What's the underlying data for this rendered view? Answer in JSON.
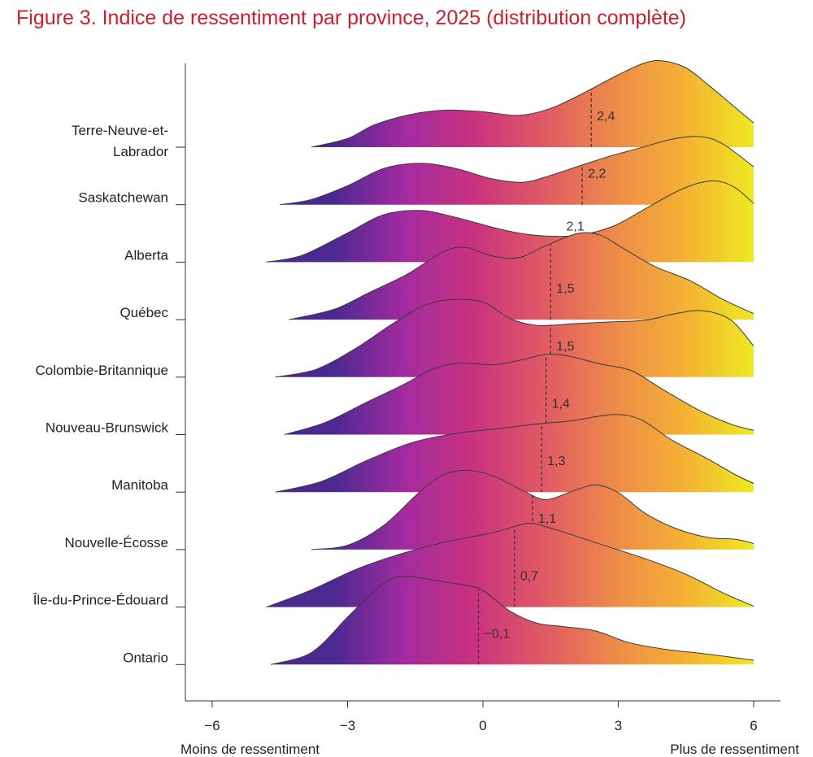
{
  "chart_data": {
    "type": "ridgeline",
    "title": "Figure 3. Indice de ressentiment par province, 2025 (distribution complète)",
    "xlabel_left": "Moins de ressentiment",
    "xlabel_right": "Plus de ressentiment",
    "xlim": [
      -6.5,
      6.2
    ],
    "xticks": [
      {
        "value": -6,
        "label": "−6"
      },
      {
        "value": -3,
        "label": "−3"
      },
      {
        "value": 0,
        "label": "0"
      },
      {
        "value": 3,
        "label": "3"
      },
      {
        "value": 6,
        "label": "6"
      }
    ],
    "colors": {
      "gradient_stops": [
        "#4b2991",
        "#a22ba0",
        "#c9327f",
        "#e05a64",
        "#ed8a4a",
        "#f4b133",
        "#eeea22"
      ],
      "title": "#c8202f",
      "outline": "#3a3a3a",
      "axis": "#333333"
    },
    "series": [
      {
        "name": "Terre-Neuve-et-Labrador",
        "label_lines": [
          "Terre-Neuve-et-",
          "Labrador"
        ],
        "median": 2.4,
        "median_label": "2,4",
        "start": -3.8,
        "end": 6.0,
        "density": [
          [
            -3.8,
            0
          ],
          [
            -3.0,
            0.1
          ],
          [
            -2.4,
            0.26
          ],
          [
            -1.6,
            0.38
          ],
          [
            -0.8,
            0.43
          ],
          [
            0,
            0.41
          ],
          [
            0.8,
            0.37
          ],
          [
            1.5,
            0.45
          ],
          [
            2.2,
            0.62
          ],
          [
            3.0,
            0.84
          ],
          [
            3.6,
            0.98
          ],
          [
            4.0,
            1.0
          ],
          [
            4.5,
            0.92
          ],
          [
            5.0,
            0.72
          ],
          [
            5.5,
            0.5
          ],
          [
            6.0,
            0.28
          ]
        ]
      },
      {
        "name": "Saskatchewan",
        "label_lines": [
          "Saskatchewan"
        ],
        "median": 2.2,
        "median_label": "2,2",
        "start": -4.5,
        "end": 6.0,
        "density": [
          [
            -4.5,
            0
          ],
          [
            -3.8,
            0.06
          ],
          [
            -3.0,
            0.22
          ],
          [
            -2.2,
            0.42
          ],
          [
            -1.4,
            0.48
          ],
          [
            -0.6,
            0.42
          ],
          [
            0.2,
            0.3
          ],
          [
            0.9,
            0.26
          ],
          [
            1.5,
            0.34
          ],
          [
            2.2,
            0.46
          ],
          [
            2.8,
            0.56
          ],
          [
            3.5,
            0.66
          ],
          [
            4.2,
            0.76
          ],
          [
            4.8,
            0.79
          ],
          [
            5.3,
            0.71
          ],
          [
            6.0,
            0.44
          ]
        ]
      },
      {
        "name": "Alberta",
        "label_lines": [
          "Alberta"
        ],
        "median": 2.1,
        "median_label": "2,1",
        "start": -4.8,
        "end": 6.0,
        "density": [
          [
            -4.8,
            0
          ],
          [
            -4.0,
            0.08
          ],
          [
            -3.0,
            0.34
          ],
          [
            -2.2,
            0.55
          ],
          [
            -1.4,
            0.6
          ],
          [
            -0.6,
            0.52
          ],
          [
            0.4,
            0.38
          ],
          [
            1.2,
            0.31
          ],
          [
            2.1,
            0.31
          ],
          [
            2.9,
            0.42
          ],
          [
            3.6,
            0.62
          ],
          [
            4.3,
            0.82
          ],
          [
            4.8,
            0.92
          ],
          [
            5.2,
            0.94
          ],
          [
            5.6,
            0.86
          ],
          [
            6.0,
            0.68
          ]
        ]
      },
      {
        "name": "Québec",
        "label_lines": [
          "Québec"
        ],
        "median": 1.5,
        "median_label": "1,5",
        "start": -4.3,
        "end": 6.0,
        "density": [
          [
            -4.3,
            0
          ],
          [
            -3.3,
            0.12
          ],
          [
            -2.5,
            0.32
          ],
          [
            -1.7,
            0.52
          ],
          [
            -0.9,
            0.78
          ],
          [
            -0.4,
            0.84
          ],
          [
            0.2,
            0.74
          ],
          [
            0.8,
            0.72
          ],
          [
            1.4,
            0.86
          ],
          [
            2.1,
            1.0
          ],
          [
            2.6,
            0.98
          ],
          [
            3.1,
            0.83
          ],
          [
            3.8,
            0.62
          ],
          [
            4.6,
            0.45
          ],
          [
            5.3,
            0.24
          ],
          [
            6.0,
            0.07
          ]
        ]
      },
      {
        "name": "Colombie-Britannique",
        "label_lines": [
          "Colombie-Britannique"
        ],
        "median": 1.5,
        "median_label": "1,5",
        "start": -4.6,
        "end": 6.0,
        "density": [
          [
            -4.6,
            0
          ],
          [
            -3.7,
            0.09
          ],
          [
            -2.8,
            0.34
          ],
          [
            -2.0,
            0.62
          ],
          [
            -1.3,
            0.83
          ],
          [
            -0.7,
            0.9
          ],
          [
            0,
            0.87
          ],
          [
            0.6,
            0.68
          ],
          [
            1.2,
            0.6
          ],
          [
            2.0,
            0.62
          ],
          [
            2.8,
            0.64
          ],
          [
            3.6,
            0.66
          ],
          [
            4.3,
            0.74
          ],
          [
            4.9,
            0.77
          ],
          [
            5.5,
            0.66
          ],
          [
            6.0,
            0.36
          ]
        ]
      },
      {
        "name": "Nouveau-Brunswick",
        "label_lines": [
          "Nouveau-Brunswick"
        ],
        "median": 1.4,
        "median_label": "1,4",
        "start": -4.4,
        "end": 6.0,
        "density": [
          [
            -4.4,
            0
          ],
          [
            -3.5,
            0.14
          ],
          [
            -2.6,
            0.37
          ],
          [
            -1.8,
            0.57
          ],
          [
            -1.1,
            0.76
          ],
          [
            -0.5,
            0.83
          ],
          [
            0.2,
            0.81
          ],
          [
            0.8,
            0.86
          ],
          [
            1.4,
            0.93
          ],
          [
            1.9,
            0.91
          ],
          [
            2.6,
            0.82
          ],
          [
            3.3,
            0.74
          ],
          [
            4.0,
            0.52
          ],
          [
            4.8,
            0.28
          ],
          [
            5.5,
            0.12
          ],
          [
            6.0,
            0.05
          ]
        ]
      },
      {
        "name": "Manitoba",
        "label_lines": [
          "Manitoba"
        ],
        "median": 1.3,
        "median_label": "1,3",
        "start": -4.6,
        "end": 6.0,
        "density": [
          [
            -4.6,
            0
          ],
          [
            -3.6,
            0.12
          ],
          [
            -2.6,
            0.36
          ],
          [
            -1.6,
            0.57
          ],
          [
            -0.6,
            0.68
          ],
          [
            0.4,
            0.74
          ],
          [
            1.2,
            0.79
          ],
          [
            2.0,
            0.83
          ],
          [
            2.9,
            0.9
          ],
          [
            3.5,
            0.84
          ],
          [
            4.2,
            0.6
          ],
          [
            5.0,
            0.38
          ],
          [
            5.6,
            0.2
          ],
          [
            6.0,
            0.1
          ]
        ]
      },
      {
        "name": "Nouvelle-Écosse",
        "label_lines": [
          "Nouvelle-Écosse"
        ],
        "median": 1.1,
        "median_label": "1,1",
        "start": -3.8,
        "end": 6.0,
        "density": [
          [
            -3.8,
            0
          ],
          [
            -3.0,
            0.05
          ],
          [
            -2.2,
            0.28
          ],
          [
            -1.4,
            0.67
          ],
          [
            -0.9,
            0.86
          ],
          [
            -0.4,
            0.92
          ],
          [
            0.2,
            0.86
          ],
          [
            0.9,
            0.68
          ],
          [
            1.4,
            0.58
          ],
          [
            2.0,
            0.68
          ],
          [
            2.5,
            0.75
          ],
          [
            3.0,
            0.66
          ],
          [
            3.6,
            0.42
          ],
          [
            4.3,
            0.24
          ],
          [
            5.0,
            0.14
          ],
          [
            5.6,
            0.12
          ],
          [
            6.0,
            0.07
          ]
        ]
      },
      {
        "name": "Île-du-Prince-Édouard",
        "label_lines": [
          "Île-du-Prince-Édouard"
        ],
        "median": 0.7,
        "median_label": "0,7",
        "start": -4.8,
        "end": 6.0,
        "density": [
          [
            -4.8,
            0
          ],
          [
            -3.8,
            0.2
          ],
          [
            -2.8,
            0.44
          ],
          [
            -1.8,
            0.62
          ],
          [
            -0.8,
            0.76
          ],
          [
            0.2,
            0.86
          ],
          [
            0.8,
            0.95
          ],
          [
            1.1,
            0.97
          ],
          [
            1.6,
            0.9
          ],
          [
            2.6,
            0.73
          ],
          [
            3.6,
            0.56
          ],
          [
            4.5,
            0.38
          ],
          [
            5.3,
            0.17
          ],
          [
            6.0,
            0.01
          ]
        ]
      },
      {
        "name": "Ontario",
        "label_lines": [
          "Ontario"
        ],
        "median": -0.1,
        "median_label": "−0,1",
        "start": -4.7,
        "end": 6.0,
        "density": [
          [
            -4.7,
            0
          ],
          [
            -3.8,
            0.14
          ],
          [
            -3.0,
            0.55
          ],
          [
            -2.4,
            0.86
          ],
          [
            -2.0,
            1.0
          ],
          [
            -1.6,
            1.02
          ],
          [
            -1.0,
            0.97
          ],
          [
            -0.4,
            0.92
          ],
          [
            0,
            0.86
          ],
          [
            0.6,
            0.62
          ],
          [
            1.2,
            0.48
          ],
          [
            1.8,
            0.44
          ],
          [
            2.5,
            0.39
          ],
          [
            3.2,
            0.26
          ],
          [
            4.0,
            0.18
          ],
          [
            5.0,
            0.12
          ],
          [
            6.0,
            0.05
          ]
        ]
      }
    ]
  }
}
